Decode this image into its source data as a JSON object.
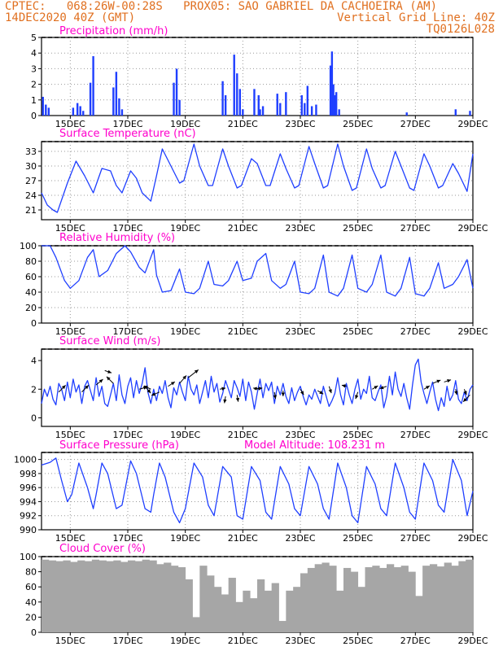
{
  "header": {
    "left_line1": "CPTEC:   068:26W-00:28S   PROX05: SAO GABRIEL DA CACHOEIRA (AM)",
    "left_line2": "14DEC2020 40Z (GMT)",
    "right_line2": "Vertical Grid Line: 40Z",
    "right_line3": "TQ0126L028"
  },
  "colors": {
    "header": "#e07020",
    "title": "#ff00cc",
    "line": "#1f3fff",
    "bar": "#1f3fff",
    "cloud": "#a6a6a6",
    "arrow": "#000000"
  },
  "x_tick_labels": [
    "15DEC",
    "17DEC",
    "19DEC",
    "21DEC",
    "23DEC",
    "25DEC",
    "27DEC",
    "29DEC"
  ],
  "chart_data": [
    {
      "type": "bar",
      "title": "Precipitation (mm/h)",
      "ylim": [
        0,
        5
      ],
      "yticks": [
        0,
        1,
        2,
        3,
        4,
        5
      ],
      "x_range_days": [
        14,
        29
      ],
      "x": [
        14.05,
        14.15,
        14.25,
        15.1,
        15.25,
        15.35,
        15.45,
        15.7,
        15.8,
        16.5,
        16.6,
        16.7,
        16.8,
        18.6,
        18.7,
        18.8,
        20.3,
        20.4,
        20.7,
        20.8,
        20.9,
        21.0,
        21.4,
        21.55,
        21.6,
        21.7,
        22.2,
        22.3,
        22.5,
        23.05,
        23.15,
        23.25,
        23.4,
        23.55,
        24.05,
        24.1,
        24.15,
        24.2,
        24.25,
        24.35,
        26.7,
        28.4,
        28.9
      ],
      "values": [
        1.2,
        0.7,
        0.5,
        0.5,
        0.8,
        0.6,
        0.3,
        2.1,
        3.8,
        1.8,
        2.8,
        1.1,
        0.4,
        2.1,
        3.0,
        1.0,
        2.2,
        1.3,
        3.9,
        2.7,
        1.7,
        0.4,
        1.7,
        1.3,
        0.4,
        0.6,
        1.4,
        0.8,
        1.5,
        1.3,
        0.8,
        1.9,
        0.6,
        0.7,
        3.2,
        4.1,
        2.0,
        1.3,
        1.5,
        0.4,
        0.2,
        0.4,
        0.3
      ]
    },
    {
      "type": "line",
      "title": "Surface Temperature (nC)",
      "ylim": [
        19,
        35
      ],
      "yticks": [
        21,
        24,
        27,
        30,
        33
      ],
      "x_range_days": [
        14,
        29
      ],
      "x": [
        14.0,
        14.2,
        14.4,
        14.55,
        14.9,
        15.2,
        15.5,
        15.8,
        16.1,
        16.4,
        16.6,
        16.8,
        17.1,
        17.3,
        17.5,
        17.8,
        18.0,
        18.2,
        18.5,
        18.8,
        18.95,
        19.3,
        19.5,
        19.8,
        19.95,
        20.3,
        20.5,
        20.8,
        20.95,
        21.3,
        21.5,
        21.8,
        21.95,
        22.3,
        22.5,
        22.8,
        22.95,
        23.3,
        23.5,
        23.8,
        23.95,
        24.3,
        24.5,
        24.8,
        24.95,
        25.3,
        25.5,
        25.8,
        25.95,
        26.3,
        26.5,
        26.8,
        26.95,
        27.3,
        27.5,
        27.8,
        27.95,
        28.3,
        28.5,
        28.8,
        29.0
      ],
      "values": [
        24.5,
        22.0,
        21.0,
        20.5,
        26.5,
        31.0,
        28.0,
        24.5,
        29.5,
        29.0,
        26.0,
        24.5,
        29.0,
        27.5,
        24.5,
        22.8,
        28.0,
        33.5,
        30.0,
        26.5,
        27.0,
        34.5,
        30.0,
        26.0,
        26.0,
        33.5,
        30.0,
        25.5,
        26.0,
        31.5,
        30.5,
        26.0,
        26.0,
        32.5,
        29.5,
        25.5,
        26.0,
        34.0,
        30.5,
        25.5,
        26.0,
        34.5,
        30.0,
        25.0,
        25.5,
        33.5,
        29.5,
        25.5,
        26.0,
        33.0,
        30.0,
        25.5,
        25.0,
        32.5,
        30.0,
        25.5,
        26.0,
        30.5,
        28.5,
        24.8,
        32.5
      ]
    },
    {
      "type": "line",
      "title": "Relative Humidity (%)",
      "ylim": [
        0,
        100
      ],
      "yticks": [
        0,
        20,
        40,
        60,
        80,
        100
      ],
      "x_range_days": [
        14,
        29
      ],
      "x": [
        14.0,
        14.3,
        14.5,
        14.8,
        15.0,
        15.3,
        15.6,
        15.8,
        16.0,
        16.3,
        16.6,
        16.9,
        17.1,
        17.4,
        17.6,
        17.9,
        18.0,
        18.2,
        18.5,
        18.8,
        19.0,
        19.3,
        19.5,
        19.8,
        20.0,
        20.3,
        20.5,
        20.8,
        21.0,
        21.3,
        21.5,
        21.8,
        22.0,
        22.3,
        22.5,
        22.8,
        23.0,
        23.3,
        23.5,
        23.8,
        24.0,
        24.3,
        24.5,
        24.8,
        25.0,
        25.3,
        25.5,
        25.8,
        26.0,
        26.3,
        26.5,
        26.8,
        27.0,
        27.3,
        27.5,
        27.8,
        28.0,
        28.3,
        28.5,
        28.8,
        29.0
      ],
      "values": [
        100,
        100,
        85,
        55,
        45,
        55,
        85,
        95,
        60,
        68,
        90,
        100,
        92,
        72,
        65,
        95,
        62,
        40,
        42,
        70,
        40,
        38,
        45,
        80,
        50,
        48,
        55,
        80,
        55,
        58,
        80,
        90,
        55,
        45,
        50,
        80,
        40,
        38,
        45,
        88,
        40,
        35,
        45,
        88,
        45,
        40,
        50,
        88,
        40,
        35,
        45,
        85,
        38,
        35,
        45,
        78,
        45,
        50,
        60,
        82,
        45
      ]
    },
    {
      "type": "line",
      "title": "Surface Wind (m/s)",
      "ylim": [
        -0.6,
        4.8
      ],
      "yticks": [
        0,
        2,
        4
      ],
      "x_range_days": [
        14,
        29
      ],
      "x": [
        14.0,
        14.1,
        14.2,
        14.3,
        14.4,
        14.5,
        14.6,
        14.7,
        14.8,
        14.9,
        15.0,
        15.1,
        15.2,
        15.3,
        15.4,
        15.5,
        15.6,
        15.7,
        15.8,
        15.9,
        16.0,
        16.1,
        16.2,
        16.3,
        16.4,
        16.5,
        16.6,
        16.7,
        16.8,
        16.9,
        17.0,
        17.1,
        17.2,
        17.3,
        17.4,
        17.5,
        17.6,
        17.7,
        17.8,
        17.9,
        18.0,
        18.1,
        18.2,
        18.3,
        18.4,
        18.5,
        18.6,
        18.7,
        18.8,
        18.9,
        19.0,
        19.1,
        19.2,
        19.3,
        19.4,
        19.5,
        19.6,
        19.7,
        19.8,
        19.9,
        20.0,
        20.1,
        20.2,
        20.3,
        20.4,
        20.5,
        20.6,
        20.7,
        20.8,
        20.9,
        21.0,
        21.1,
        21.2,
        21.3,
        21.4,
        21.5,
        21.6,
        21.7,
        21.8,
        21.9,
        22.0,
        22.1,
        22.2,
        22.3,
        22.4,
        22.5,
        22.6,
        22.7,
        22.8,
        22.9,
        23.0,
        23.1,
        23.2,
        23.3,
        23.4,
        23.5,
        23.6,
        23.7,
        23.8,
        23.9,
        24.0,
        24.1,
        24.2,
        24.3,
        24.4,
        24.5,
        24.6,
        24.7,
        24.8,
        24.9,
        25.0,
        25.1,
        25.2,
        25.3,
        25.4,
        25.5,
        25.6,
        25.7,
        25.8,
        25.9,
        26.0,
        26.1,
        26.2,
        26.3,
        26.4,
        26.5,
        26.6,
        26.7,
        26.8,
        26.9,
        27.0,
        27.1,
        27.2,
        27.3,
        27.4,
        27.5,
        27.6,
        27.7,
        27.8,
        27.9,
        28.0,
        28.1,
        28.2,
        28.3,
        28.4,
        28.5,
        28.6,
        28.7,
        28.8,
        28.9,
        29.0
      ],
      "values": [
        1.0,
        2.0,
        1.5,
        2.2,
        1.3,
        0.9,
        2.4,
        2.0,
        1.2,
        2.5,
        1.4,
        2.7,
        1.8,
        2.3,
        1.0,
        2.2,
        2.6,
        1.9,
        1.2,
        2.8,
        1.5,
        2.2,
        1.0,
        0.8,
        1.6,
        2.4,
        1.2,
        3.0,
        1.6,
        1.0,
        2.2,
        2.8,
        1.4,
        2.6,
        1.7,
        2.4,
        3.5,
        1.8,
        1.0,
        2.0,
        1.2,
        2.2,
        1.7,
        2.6,
        1.4,
        0.7,
        2.1,
        1.6,
        2.5,
        1.8,
        1.2,
        2.9,
        2.0,
        1.6,
        2.3,
        1.0,
        1.8,
        2.6,
        1.4,
        2.9,
        1.8,
        2.4,
        1.1,
        1.7,
        2.6,
        2.0,
        1.4,
        2.6,
        2.1,
        1.5,
        2.7,
        1.2,
        2.5,
        1.8,
        0.6,
        1.7,
        2.7,
        1.4,
        2.4,
        1.9,
        2.5,
        1.0,
        2.2,
        1.6,
        2.4,
        1.5,
        1.0,
        2.1,
        1.2,
        1.8,
        2.2,
        1.5,
        0.9,
        1.6,
        1.3,
        2.0,
        1.5,
        1.0,
        2.2,
        1.5,
        0.8,
        1.2,
        1.7,
        2.8,
        1.6,
        0.9,
        2.4,
        1.6,
        1.0,
        2.0,
        2.7,
        1.3,
        2.0,
        1.7,
        2.9,
        1.4,
        1.2,
        1.8,
        2.3,
        0.7,
        1.5,
        2.9,
        1.6,
        3.2,
        2.0,
        1.5,
        2.4,
        1.4,
        0.6,
        2.3,
        3.7,
        4.1,
        2.5,
        1.7,
        1.0,
        1.8,
        2.5,
        1.3,
        0.5,
        1.4,
        0.8,
        2.2,
        1.2,
        1.6,
        2.6,
        1.3,
        1.0,
        1.8,
        1.2,
        2.0,
        2.3
      ],
      "arrows": [
        {
          "x": 14.6,
          "y": 1.8,
          "u": 0.6,
          "v": 0.6
        },
        {
          "x": 15.4,
          "y": 1.8,
          "u": 0.6,
          "v": 0.6
        },
        {
          "x": 15.9,
          "y": 2.3,
          "u": 0.6,
          "v": 0.5
        },
        {
          "x": 16.2,
          "y": 3.3,
          "u": 0.6,
          "v": -0.2
        },
        {
          "x": 16.5,
          "y": 2.4,
          "u": -0.6,
          "v": 0.6
        },
        {
          "x": 17.4,
          "y": 2.0,
          "u": 0.7,
          "v": 0.2
        },
        {
          "x": 17.6,
          "y": 2.2,
          "u": 0.5,
          "v": -0.6
        },
        {
          "x": 17.8,
          "y": 2.0,
          "u": -0.6,
          "v": 0.3
        },
        {
          "x": 18.1,
          "y": 1.8,
          "u": -0.7,
          "v": -0.3
        },
        {
          "x": 18.4,
          "y": 2.2,
          "u": 0.6,
          "v": 0.4
        },
        {
          "x": 18.8,
          "y": 2.4,
          "u": 0.6,
          "v": 0.7
        },
        {
          "x": 19.1,
          "y": 2.8,
          "u": 0.9,
          "v": 0.7
        },
        {
          "x": 20.2,
          "y": 2.0,
          "u": 0.5,
          "v": 0.1
        },
        {
          "x": 20.4,
          "y": 1.5,
          "u": -0.1,
          "v": -0.6
        },
        {
          "x": 20.8,
          "y": 1.6,
          "u": 0.1,
          "v": -0.6
        },
        {
          "x": 21.4,
          "y": 2.0,
          "u": 0.7,
          "v": 0.1
        },
        {
          "x": 21.6,
          "y": 2.0,
          "u": -0.6,
          "v": 0.1
        },
        {
          "x": 22.1,
          "y": 1.8,
          "u": 0.1,
          "v": -0.6
        },
        {
          "x": 22.4,
          "y": 1.9,
          "u": 0.0,
          "v": -0.5
        },
        {
          "x": 23.0,
          "y": 2.0,
          "u": 0.3,
          "v": -0.5
        },
        {
          "x": 23.6,
          "y": 1.9,
          "u": 0.5,
          "v": -0.3
        },
        {
          "x": 24.0,
          "y": 2.2,
          "u": 0.2,
          "v": -0.6
        },
        {
          "x": 24.6,
          "y": 2.2,
          "u": -0.4,
          "v": 0.1
        },
        {
          "x": 25.0,
          "y": 1.8,
          "u": -0.2,
          "v": -0.6
        },
        {
          "x": 25.5,
          "y": 2.0,
          "u": 0.5,
          "v": 0.3
        },
        {
          "x": 26.0,
          "y": 2.2,
          "u": -0.6,
          "v": -0.2
        },
        {
          "x": 27.3,
          "y": 2.0,
          "u": 0.5,
          "v": 0.3
        },
        {
          "x": 27.6,
          "y": 2.4,
          "u": 0.7,
          "v": 0.3
        },
        {
          "x": 28.0,
          "y": 2.5,
          "u": 0.6,
          "v": 0.2
        },
        {
          "x": 28.4,
          "y": 2.0,
          "u": 0.1,
          "v": -0.5
        },
        {
          "x": 28.7,
          "y": 2.0,
          "u": 0.2,
          "v": -0.5
        },
        {
          "x": 28.9,
          "y": 1.6,
          "u": -0.6,
          "v": -0.6
        }
      ]
    },
    {
      "type": "line",
      "title": "Surface Pressure (hPa)",
      "annotation": "Model Altitude: 108.231 m",
      "ylim": [
        990,
        1001
      ],
      "yticks": [
        990,
        992,
        994,
        996,
        998,
        1000
      ],
      "x_range_days": [
        14,
        29
      ],
      "x": [
        14.0,
        14.3,
        14.5,
        14.7,
        14.9,
        15.05,
        15.3,
        15.6,
        15.8,
        15.9,
        16.1,
        16.3,
        16.6,
        16.8,
        17.1,
        17.3,
        17.6,
        17.8,
        17.9,
        18.1,
        18.3,
        18.6,
        18.8,
        19.0,
        19.3,
        19.6,
        19.8,
        20.0,
        20.3,
        20.6,
        20.8,
        21.0,
        21.3,
        21.6,
        21.8,
        22.0,
        22.3,
        22.6,
        22.8,
        23.0,
        23.3,
        23.6,
        23.8,
        24.0,
        24.3,
        24.6,
        24.8,
        25.0,
        25.3,
        25.6,
        25.8,
        26.0,
        26.3,
        26.6,
        26.8,
        27.0,
        27.3,
        27.6,
        27.8,
        28.0,
        28.3,
        28.6,
        28.8,
        29.0
      ],
      "values": [
        999.2,
        999.6,
        1000.2,
        997.0,
        994.0,
        995.0,
        999.5,
        996.0,
        993.0,
        995.0,
        999.5,
        998.0,
        993.0,
        993.5,
        999.8,
        998.0,
        993.0,
        992.5,
        995.0,
        999.5,
        997.5,
        992.5,
        991.0,
        993.0,
        999.5,
        997.5,
        993.5,
        992.0,
        999.0,
        997.5,
        992.0,
        991.5,
        999.0,
        997.0,
        992.5,
        991.5,
        999.0,
        996.5,
        993.0,
        992.0,
        999.0,
        996.5,
        993.0,
        991.5,
        999.5,
        996.0,
        992.0,
        991.0,
        999.0,
        996.5,
        993.0,
        992.0,
        999.5,
        996.0,
        992.5,
        991.5,
        999.5,
        997.0,
        993.5,
        992.5,
        1000.0,
        997.0,
        992.0,
        995.5
      ]
    },
    {
      "type": "bar",
      "title": "Cloud Cover (%)",
      "ylim": [
        0,
        100
      ],
      "yticks": [
        0,
        20,
        40,
        60,
        80,
        100
      ],
      "x_range_days": [
        14,
        29
      ],
      "x": [
        14.0,
        14.25,
        14.5,
        14.75,
        15.0,
        15.25,
        15.5,
        15.75,
        16.0,
        16.25,
        16.5,
        16.75,
        17.0,
        17.25,
        17.5,
        17.75,
        18.0,
        18.25,
        18.5,
        18.75,
        19.0,
        19.25,
        19.5,
        19.75,
        20.0,
        20.25,
        20.5,
        20.75,
        21.0,
        21.25,
        21.5,
        21.75,
        22.0,
        22.25,
        22.5,
        22.75,
        23.0,
        23.25,
        23.5,
        23.75,
        24.0,
        24.25,
        24.5,
        24.75,
        25.0,
        25.25,
        25.5,
        25.75,
        26.0,
        26.25,
        26.5,
        26.75,
        27.0,
        27.25,
        27.5,
        27.75,
        28.0,
        28.25,
        28.5,
        28.75
      ],
      "values": [
        96,
        95,
        94,
        95,
        93,
        95,
        94,
        96,
        95,
        94,
        95,
        93,
        95,
        94,
        96,
        95,
        90,
        92,
        88,
        86,
        70,
        20,
        88,
        75,
        60,
        50,
        72,
        40,
        55,
        45,
        70,
        55,
        65,
        15,
        55,
        60,
        78,
        85,
        90,
        92,
        88,
        55,
        85,
        80,
        60,
        86,
        88,
        85,
        90,
        86,
        88,
        80,
        48,
        88,
        90,
        87,
        92,
        88,
        94,
        96
      ]
    }
  ]
}
